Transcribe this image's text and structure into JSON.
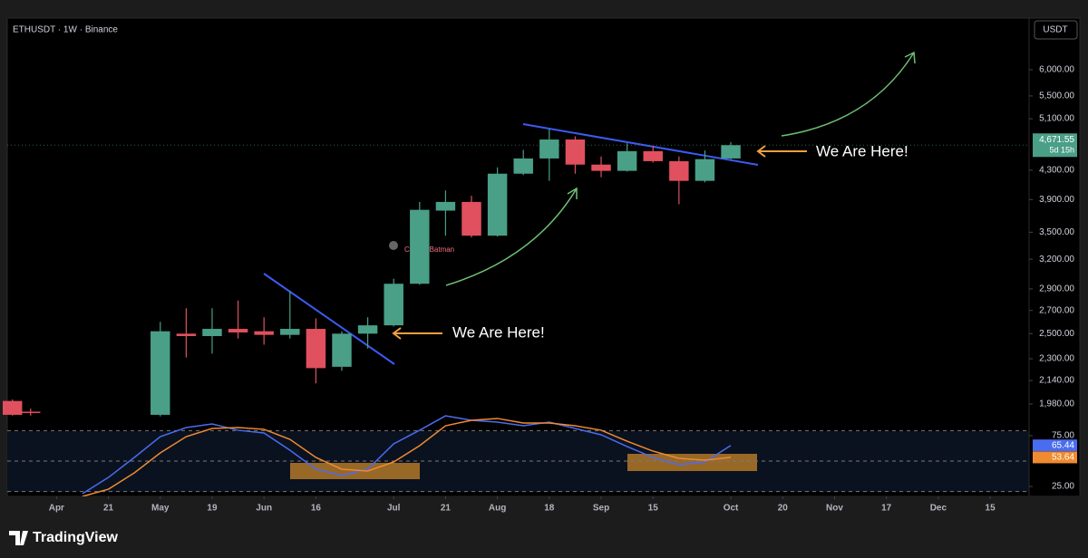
{
  "chart_data": [
    {
      "type": "candlestick",
      "title": "ETHUSDT · 1W · Binance",
      "currency": "USDT",
      "x": [
        -1.7,
        -1,
        4,
        5,
        6,
        7,
        8,
        9,
        10,
        11,
        12,
        13,
        14,
        15,
        16,
        17,
        18,
        19,
        20,
        21,
        22,
        23,
        24,
        25,
        26
      ],
      "open": [
        2000,
        1930,
        1910,
        2500,
        2480,
        2540,
        2520,
        2490,
        2540,
        2240,
        2500,
        2570,
        2950,
        3760,
        3870,
        3460,
        4250,
        4470,
        4760,
        4380,
        4290,
        4580,
        4430,
        4150,
        4470
      ],
      "high": [
        2010,
        1950,
        2600,
        2720,
        2720,
        2790,
        2640,
        2880,
        2630,
        2520,
        2640,
        3000,
        3870,
        4020,
        3950,
        4340,
        4600,
        4930,
        4810,
        4500,
        4700,
        4660,
        4500,
        4590,
        4720
      ],
      "low": [
        1905,
        1905,
        1900,
        2310,
        2340,
        2460,
        2410,
        2460,
        2120,
        2210,
        2380,
        2560,
        2940,
        3460,
        3440,
        3450,
        4230,
        4150,
        4250,
        4200,
        4280,
        4410,
        3840,
        4130,
        4460
      ],
      "close": [
        1910,
        1925,
        2520,
        2480,
        2540,
        2510,
        2490,
        2540,
        2230,
        2500,
        2570,
        2950,
        3770,
        3870,
        3460,
        4250,
        4470,
        4760,
        4380,
        4290,
        4580,
        4430,
        4150,
        4460,
        4671.55
      ],
      "last_label": "4,671.55",
      "countdown": "5d 15h",
      "up_color": "#4a9f87",
      "down_color": "#e0505e",
      "log_scale": true,
      "ylim": [
        1842,
        7120
      ],
      "xlim": [
        -1.9,
        37.5
      ],
      "yticks": [
        {
          "value": 6000,
          "label": "6,000.00"
        },
        {
          "value": 5500,
          "label": "5,500.00"
        },
        {
          "value": 5100,
          "label": "5,100.00"
        },
        {
          "value": 4300,
          "label": "4,300.00"
        },
        {
          "value": 3900,
          "label": "3,900.00"
        },
        {
          "value": 3500,
          "label": "3,500.00"
        },
        {
          "value": 3200,
          "label": "3,200.00"
        },
        {
          "value": 2900,
          "label": "2,900.00"
        },
        {
          "value": 2700,
          "label": "2,700.00"
        },
        {
          "value": 2500,
          "label": "2,500.00"
        },
        {
          "value": 2300,
          "label": "2,300.00"
        },
        {
          "value": 2140,
          "label": "2,140.00"
        },
        {
          "value": 1980,
          "label": "1,980.00"
        }
      ],
      "xticks": [
        {
          "value": 0,
          "label": "Apr"
        },
        {
          "value": 2,
          "label": "21"
        },
        {
          "value": 4,
          "label": "May"
        },
        {
          "value": 6,
          "label": "19"
        },
        {
          "value": 8,
          "label": "Jun"
        },
        {
          "value": 10,
          "label": "16"
        },
        {
          "value": 13,
          "label": "Jul"
        },
        {
          "value": 15,
          "label": "21"
        },
        {
          "value": 17,
          "label": "Aug"
        },
        {
          "value": 19,
          "label": "18"
        },
        {
          "value": 21,
          "label": "Sep"
        },
        {
          "value": 23,
          "label": "15"
        },
        {
          "value": 26,
          "label": "Oct"
        },
        {
          "value": 28,
          "label": "20"
        },
        {
          "value": 30,
          "label": "Nov"
        },
        {
          "value": 32,
          "label": "17"
        },
        {
          "value": 34,
          "label": "Dec"
        },
        {
          "value": 36,
          "label": "15"
        }
      ],
      "annotations": [
        "We Are Here!",
        "We Are Here!"
      ],
      "watermark": "CryptosBatman",
      "brand": "TradingView"
    },
    {
      "type": "line",
      "x": [
        1,
        2,
        3,
        4,
        5,
        6,
        7,
        8,
        9,
        10,
        11,
        12,
        13,
        14,
        15,
        16,
        17,
        18,
        19,
        20,
        21,
        22,
        23,
        24,
        25,
        26
      ],
      "series": [
        {
          "color": "#4a6cf0",
          "values": [
            17.9,
            33.9,
            53.6,
            74.1,
            83,
            86.6,
            80.4,
            77.7,
            60.7,
            42,
            35.7,
            42,
            67,
            80.4,
            94.6,
            90.2,
            88.4,
            84.8,
            88.4,
            82.1,
            75.9,
            64.3,
            53.6,
            46.4,
            49.1,
            65.44
          ]
        },
        {
          "color": "#f08a30",
          "values": [
            15.2,
            22.3,
            38.4,
            58,
            74.1,
            82.1,
            83,
            81.3,
            71.4,
            53.6,
            42,
            40.2,
            49.1,
            65.2,
            84.8,
            90.2,
            92,
            87.5,
            87.5,
            84.8,
            80.4,
            69.6,
            59.8,
            52.7,
            50.9,
            53.64
          ]
        }
      ],
      "ylim": [
        15.2,
        98.2
      ],
      "xlim": [
        -1.9,
        37.5
      ],
      "yticks": [
        {
          "value": 75,
          "label": "75.00"
        },
        {
          "value": 25,
          "label": "25.00"
        }
      ],
      "levels": [
        80,
        50,
        20
      ]
    }
  ]
}
